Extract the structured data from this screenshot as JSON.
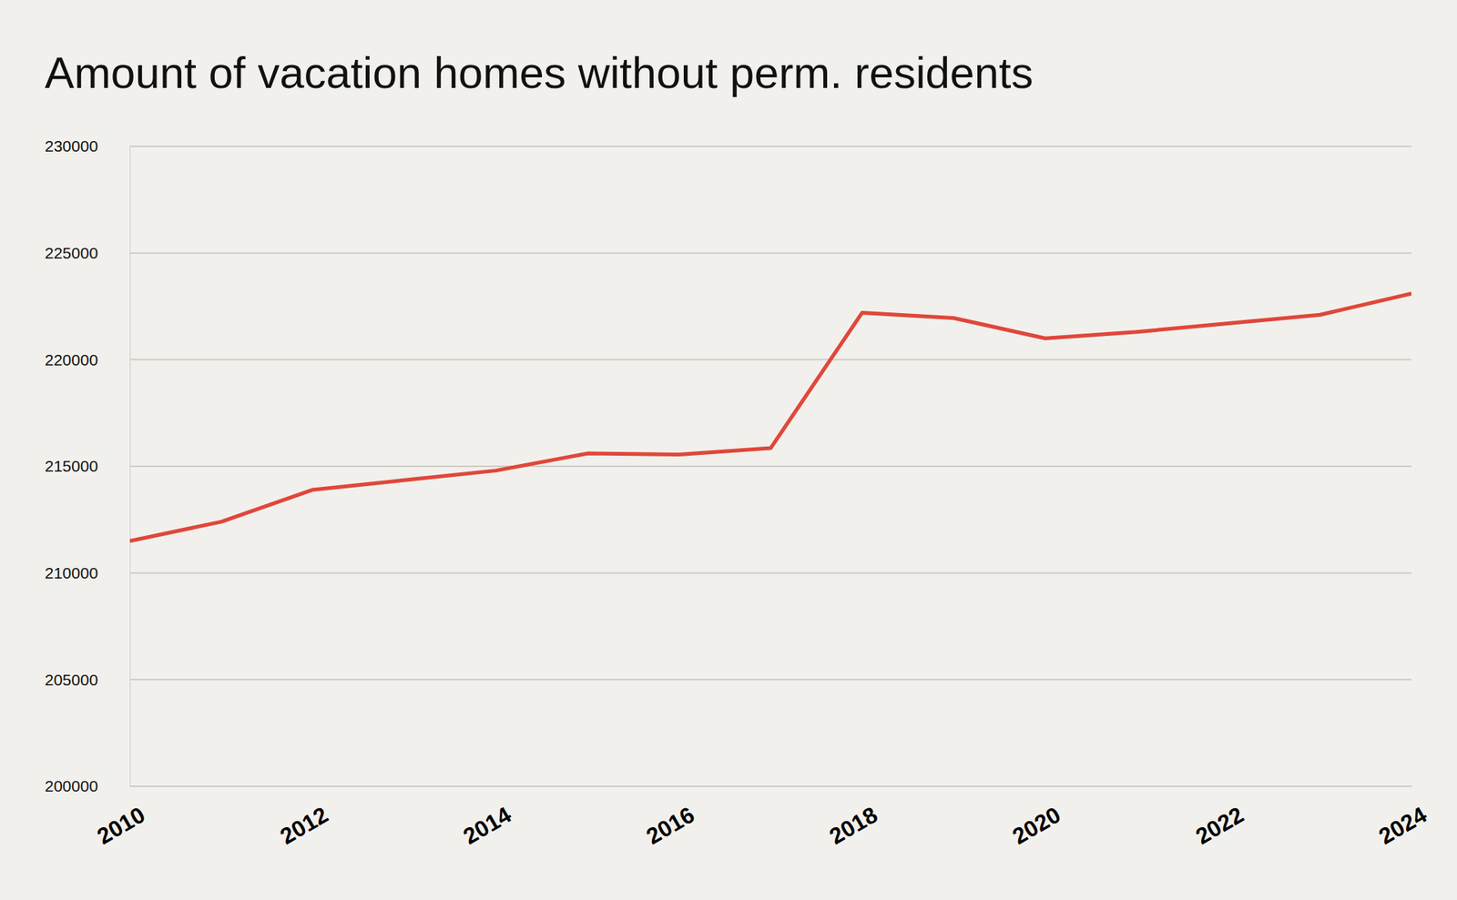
{
  "chart_data": {
    "type": "line",
    "title": "Amount of vacation homes without perm. residents",
    "x": [
      2010,
      2011,
      2012,
      2013,
      2014,
      2015,
      2016,
      2017,
      2018,
      2019,
      2020,
      2021,
      2022,
      2023,
      2024
    ],
    "values": [
      211500,
      212400,
      213900,
      214350,
      214800,
      215600,
      215550,
      215850,
      222200,
      221950,
      221000,
      221300,
      221700,
      222100,
      223100
    ],
    "color": "#e0473b",
    "xlim": [
      2010,
      2024
    ],
    "xticks": [
      2010,
      2012,
      2014,
      2016,
      2018,
      2020,
      2022,
      2024
    ],
    "ylim": [
      200000,
      230000
    ],
    "yticks": [
      200000,
      205000,
      210000,
      215000,
      220000,
      225000,
      230000
    ],
    "grid": true
  }
}
